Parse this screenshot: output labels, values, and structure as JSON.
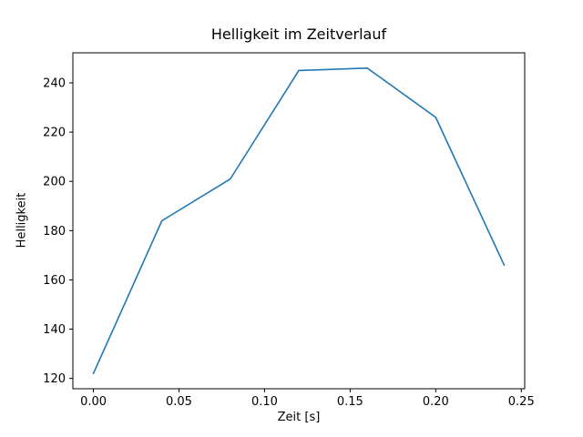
{
  "figure": {
    "background": "#ffffff"
  },
  "chart_data": {
    "type": "line",
    "title": "Helligkeit im Zeitverlauf",
    "xlabel": "Zeit [s]",
    "ylabel": "Helligkeit",
    "x": [
      0.0,
      0.04,
      0.08,
      0.12,
      0.16,
      0.2,
      0.24
    ],
    "y": [
      122,
      184,
      201,
      245,
      246,
      226,
      166
    ],
    "xlim": [
      -0.012,
      0.252
    ],
    "ylim": [
      115.8,
      252.2
    ],
    "xticks": [
      0.0,
      0.05,
      0.1,
      0.15,
      0.2,
      0.25
    ],
    "xtick_labels": [
      "0.00",
      "0.05",
      "0.10",
      "0.15",
      "0.20",
      "0.25"
    ],
    "yticks": [
      120,
      140,
      160,
      180,
      200,
      220,
      240
    ],
    "ytick_labels": [
      "120",
      "140",
      "160",
      "180",
      "200",
      "220",
      "240"
    ],
    "grid": false,
    "legend": null,
    "line_color": "#1f77b4",
    "spine_color": "#000000"
  }
}
